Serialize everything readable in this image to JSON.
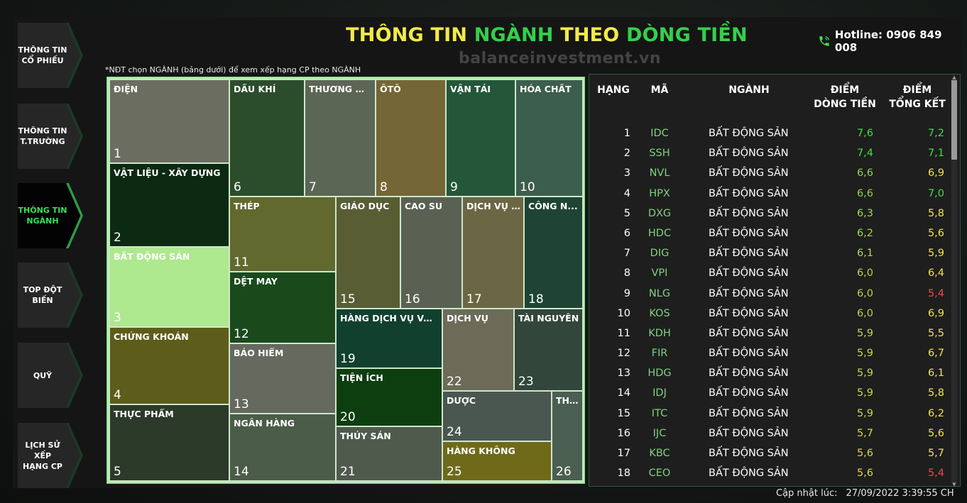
{
  "sidebar": {
    "items": [
      {
        "label_l1": "THÔNG TIN",
        "label_l2": "CỔ PHIẾU",
        "active": false
      },
      {
        "label_l1": "THÔNG TIN",
        "label_l2": "T.TRƯỜNG",
        "active": false
      },
      {
        "label_l1": "THÔNG TIN",
        "label_l2": "NGÀNH",
        "active": true
      },
      {
        "label_l1": "TOP ĐỘT",
        "label_l2": "BIẾN",
        "active": false
      },
      {
        "label_l1": "QUỸ",
        "label_l2": "",
        "active": false
      },
      {
        "label_l1": "LỊCH SỬ XẾP",
        "label_l2": "HẠNG CP",
        "active": false
      }
    ]
  },
  "header": {
    "title_p1": "THÔNG TIN ",
    "title_p2": "NGÀNH ",
    "title_p3": "THEO ",
    "title_p4": "DÒNG TIỀN",
    "hotline": "Hotline: 0906 849 008",
    "watermark": "balanceinvestment.vn",
    "note": "*NĐT chọn NGÀNH (bảng dưới) để xem xếp hạng CP theo NGÀNH"
  },
  "treemap": {
    "tiles": [
      {
        "name": "ĐIỆN",
        "rank": "1",
        "color": "#6b6d60"
      },
      {
        "name": "VẬT LIỆU - XÂY DỰNG",
        "rank": "2",
        "color": "#0c2a12"
      },
      {
        "name": "BẤT ĐỘNG SẢN",
        "rank": "3",
        "color": "#aee88f"
      },
      {
        "name": "CHỨNG KHOÁN",
        "rank": "4",
        "color": "#5e5c1a"
      },
      {
        "name": "THỰC PHẨM",
        "rank": "5",
        "color": "#2c3a2a"
      },
      {
        "name": "DẦU KHÍ",
        "rank": "6",
        "color": "#2c4d2c"
      },
      {
        "name": "THƯƠNG MẠI",
        "rank": "7",
        "color": "#5c6654"
      },
      {
        "name": "ÔTÔ",
        "rank": "8",
        "color": "#746636"
      },
      {
        "name": "VẬN TẢI",
        "rank": "9",
        "color": "#24573a"
      },
      {
        "name": "HÓA CHẤT",
        "rank": "10",
        "color": "#3c5e4c"
      },
      {
        "name": "THÉP",
        "rank": "11",
        "color": "#62692e"
      },
      {
        "name": "DỆT MAY",
        "rank": "12",
        "color": "#1a4a1c"
      },
      {
        "name": "BẢO HIỂM",
        "rank": "13",
        "color": "#66695e"
      },
      {
        "name": "NGÂN HÀNG",
        "rank": "14",
        "color": "#4b5c48"
      },
      {
        "name": "GIÁO DỤC",
        "rank": "15",
        "color": "#585d34"
      },
      {
        "name": "CAO SU",
        "rank": "16",
        "color": "#5b6152"
      },
      {
        "name": "DỊCH VỤ T...",
        "rank": "17",
        "color": "#6b6744"
      },
      {
        "name": "CÔNG N...",
        "rank": "18",
        "color": "#1f4436"
      },
      {
        "name": "HÀNG DỊCH VỤ VÀ ...",
        "rank": "19",
        "color": "#11402e"
      },
      {
        "name": "TIỆN ÍCH",
        "rank": "20",
        "color": "#0d3e10"
      },
      {
        "name": "THỦY SẢN",
        "rank": "21",
        "color": "#4f5a4c"
      },
      {
        "name": "DỊCH VỤ",
        "rank": "22",
        "color": "#6b6b58"
      },
      {
        "name": "TÀI NGUYÊN",
        "rank": "23",
        "color": "#33463c"
      },
      {
        "name": "DƯỢC",
        "rank": "24",
        "color": "#4a5650"
      },
      {
        "name": "HÀNG KHÔNG",
        "rank": "25",
        "color": "#6f6a1a"
      },
      {
        "name": "TH...",
        "rank": "26",
        "color": "#4a5e52"
      }
    ]
  },
  "ranking": {
    "headers": {
      "rank": "HẠNG",
      "code": "MÃ",
      "industry": "NGÀNH",
      "cf_l1": "ĐIỂM",
      "cf_l2": "DÒNG TIỀN",
      "tot_l1": "ĐIỂM",
      "tot_l2": "TỔNG KẾT"
    },
    "colors": {
      "green": "#3ee04a",
      "yellow": "#f2e64a",
      "red": "#f04a4a"
    },
    "rows": [
      {
        "rank": "1",
        "code": "IDC",
        "industry": "BẤT ĐỘNG SẢN",
        "cf": "7,6",
        "tot": "7,2",
        "tot_color": "#3ee04a",
        "cf_color": "#3ee04a"
      },
      {
        "rank": "2",
        "code": "SSH",
        "industry": "BẤT ĐỘNG SẢN",
        "cf": "7,4",
        "tot": "7,1",
        "tot_color": "#3ee04a",
        "cf_color": "#3ee04a"
      },
      {
        "rank": "3",
        "code": "NVL",
        "industry": "BẤT ĐỘNG SẢN",
        "cf": "6,6",
        "tot": "6,9",
        "tot_color": "#f2e64a",
        "cf_color": "#8fd84a"
      },
      {
        "rank": "4",
        "code": "HPX",
        "industry": "BẤT ĐỘNG SẢN",
        "cf": "6,6",
        "tot": "7,0",
        "tot_color": "#3ee04a",
        "cf_color": "#8fd84a"
      },
      {
        "rank": "5",
        "code": "DXG",
        "industry": "BẤT ĐỘNG SẢN",
        "cf": "6,3",
        "tot": "5,8",
        "tot_color": "#f2e64a",
        "cf_color": "#a8d846"
      },
      {
        "rank": "6",
        "code": "HDC",
        "industry": "BẤT ĐỘNG SẢN",
        "cf": "6,2",
        "tot": "5,6",
        "tot_color": "#f2e64a",
        "cf_color": "#a8d846"
      },
      {
        "rank": "7",
        "code": "DIG",
        "industry": "BẤT ĐỘNG SẢN",
        "cf": "6,1",
        "tot": "5,9",
        "tot_color": "#f2e64a",
        "cf_color": "#b5d946"
      },
      {
        "rank": "8",
        "code": "VPI",
        "industry": "BẤT ĐỘNG SẢN",
        "cf": "6,0",
        "tot": "6,4",
        "tot_color": "#f2e64a",
        "cf_color": "#b5d946"
      },
      {
        "rank": "9",
        "code": "NLG",
        "industry": "BẤT ĐỘNG SẢN",
        "cf": "6,0",
        "tot": "5,4",
        "tot_color": "#f04a4a",
        "cf_color": "#b5d946"
      },
      {
        "rank": "10",
        "code": "KOS",
        "industry": "BẤT ĐỘNG SẢN",
        "cf": "6,0",
        "tot": "6,9",
        "tot_color": "#f2e64a",
        "cf_color": "#b5d946"
      },
      {
        "rank": "11",
        "code": "KDH",
        "industry": "BẤT ĐỘNG SẢN",
        "cf": "5,9",
        "tot": "5,5",
        "tot_color": "#f2e64a",
        "cf_color": "#c8d946"
      },
      {
        "rank": "12",
        "code": "FIR",
        "industry": "BẤT ĐỘNG SẢN",
        "cf": "5,9",
        "tot": "6,7",
        "tot_color": "#f2e64a",
        "cf_color": "#c8d946"
      },
      {
        "rank": "13",
        "code": "HDG",
        "industry": "BẤT ĐỘNG SẢN",
        "cf": "5,9",
        "tot": "6,1",
        "tot_color": "#f2e64a",
        "cf_color": "#c8d946"
      },
      {
        "rank": "14",
        "code": "IDJ",
        "industry": "BẤT ĐỘNG SẢN",
        "cf": "5,9",
        "tot": "5,8",
        "tot_color": "#f2e64a",
        "cf_color": "#c8d946"
      },
      {
        "rank": "15",
        "code": "ITC",
        "industry": "BẤT ĐỘNG SẢN",
        "cf": "5,9",
        "tot": "6,2",
        "tot_color": "#f2e64a",
        "cf_color": "#c8d946"
      },
      {
        "rank": "16",
        "code": "IJC",
        "industry": "BẤT ĐỘNG SẢN",
        "cf": "5,7",
        "tot": "5,6",
        "tot_color": "#f2e64a",
        "cf_color": "#d6d946"
      },
      {
        "rank": "17",
        "code": "KBC",
        "industry": "BẤT ĐỘNG SẢN",
        "cf": "5,6",
        "tot": "5,7",
        "tot_color": "#f2e64a",
        "cf_color": "#dcd946"
      },
      {
        "rank": "18",
        "code": "CEO",
        "industry": "BẤT ĐỘNG SẢN",
        "cf": "5,6",
        "tot": "5,4",
        "tot_color": "#f04a4a",
        "cf_color": "#dcd946"
      }
    ]
  },
  "footer": {
    "updated_label": "Cập nhật lúc:",
    "updated_value": "27/09/2022 3:39:55 CH"
  }
}
